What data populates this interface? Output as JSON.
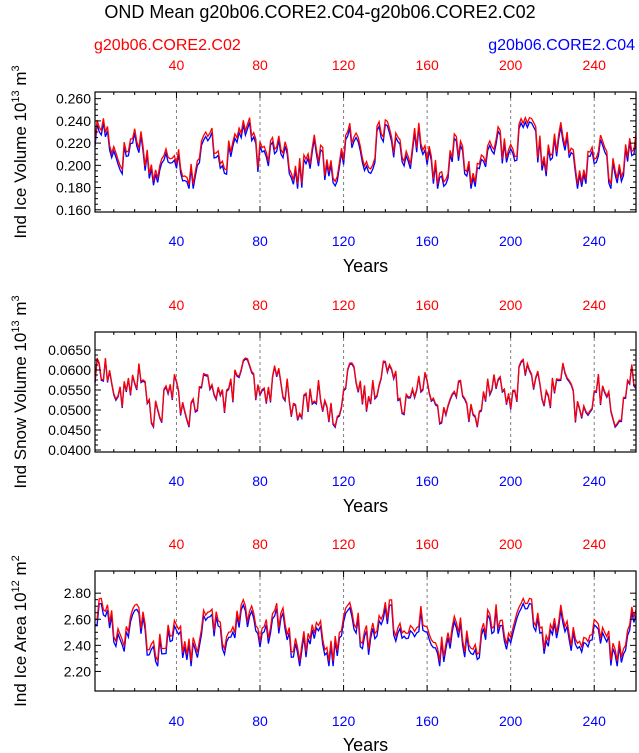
{
  "title": "OND Mean g20b06.CORE2.C04-g20b06.CORE2.C02",
  "legend": {
    "left_label": "g20b06.CORE2.C02",
    "right_label": "g20b06.CORE2.C04"
  },
  "colors": {
    "c02": "#ff0000",
    "c04": "#0000ff",
    "axis": "#000000",
    "gridline": "#808080"
  },
  "chart_data": [
    {
      "type": "line",
      "title": "OND Mean g20b06.CORE2.C04-g20b06.CORE2.C02",
      "ylabel_main": "Ind Ice Volume 10",
      "ylabel_exp": "13",
      "ylabel_unit": "m",
      "ylabel_unit_exp": "3",
      "xlabel": "Years",
      "xlim": [
        1,
        260
      ],
      "ylim": [
        0.158,
        0.266
      ],
      "yticks": [
        0.16,
        0.18,
        0.2,
        0.22,
        0.24,
        0.26
      ],
      "ytick_labels": [
        "0.160",
        "0.180",
        "0.200",
        "0.220",
        "0.240",
        "0.260"
      ],
      "xticks_bottom": [
        40,
        80,
        120,
        160,
        200,
        240
      ],
      "xticks_top": [
        40,
        80,
        120,
        160,
        200,
        240
      ],
      "vlines": [
        40,
        80,
        120,
        160,
        200,
        240
      ],
      "series": [
        {
          "name": "g20b06.CORE2.C02",
          "color": "#ff0000",
          "base": 0.213,
          "amp": 0.03,
          "offset": 0.0
        },
        {
          "name": "g20b06.CORE2.C04",
          "color": "#0000ff",
          "base": 0.213,
          "amp": 0.03,
          "offset": -0.004
        }
      ]
    },
    {
      "type": "line",
      "ylabel_main": "Ind Snow Volume 10",
      "ylabel_exp": "13",
      "ylabel_unit": "m",
      "ylabel_unit_exp": "3",
      "xlabel": "Years",
      "xlim": [
        1,
        260
      ],
      "ylim": [
        0.0395,
        0.0695
      ],
      "yticks": [
        0.04,
        0.045,
        0.05,
        0.055,
        0.06,
        0.065
      ],
      "ytick_labels": [
        "0.0400",
        "0.0450",
        "0.0500",
        "0.0550",
        "0.0600",
        "0.0650"
      ],
      "xticks_bottom": [
        40,
        80,
        120,
        160,
        200,
        240
      ],
      "xticks_top": [
        40,
        80,
        120,
        160,
        200,
        240
      ],
      "vlines": [
        40,
        80,
        120,
        160,
        200,
        240
      ],
      "series": [
        {
          "name": "g20b06.CORE2.C02",
          "color": "#ff0000",
          "base": 0.0545,
          "amp": 0.0085,
          "offset": 0.0
        },
        {
          "name": "g20b06.CORE2.C04",
          "color": "#0000ff",
          "base": 0.0545,
          "amp": 0.0085,
          "offset": -0.0003
        }
      ]
    },
    {
      "type": "line",
      "ylabel_main": "Ind Ice Area 10",
      "ylabel_exp": "12",
      "ylabel_unit": "m",
      "ylabel_unit_exp": "2",
      "xlabel": "Years",
      "xlim": [
        1,
        260
      ],
      "ylim": [
        2.05,
        2.97
      ],
      "yticks": [
        2.2,
        2.4,
        2.6,
        2.8
      ],
      "ytick_labels": [
        "2.20",
        "2.40",
        "2.60",
        "2.80"
      ],
      "xticks_bottom": [
        40,
        80,
        120,
        160,
        200,
        240
      ],
      "xticks_top": [
        40,
        80,
        120,
        160,
        200,
        240
      ],
      "vlines": [
        40,
        80,
        120,
        160,
        200,
        240
      ],
      "series": [
        {
          "name": "g20b06.CORE2.C02",
          "color": "#ff0000",
          "base": 2.52,
          "amp": 0.24,
          "offset": 0.0
        },
        {
          "name": "g20b06.CORE2.C04",
          "color": "#0000ff",
          "base": 2.52,
          "amp": 0.24,
          "offset": -0.04
        }
      ]
    }
  ]
}
